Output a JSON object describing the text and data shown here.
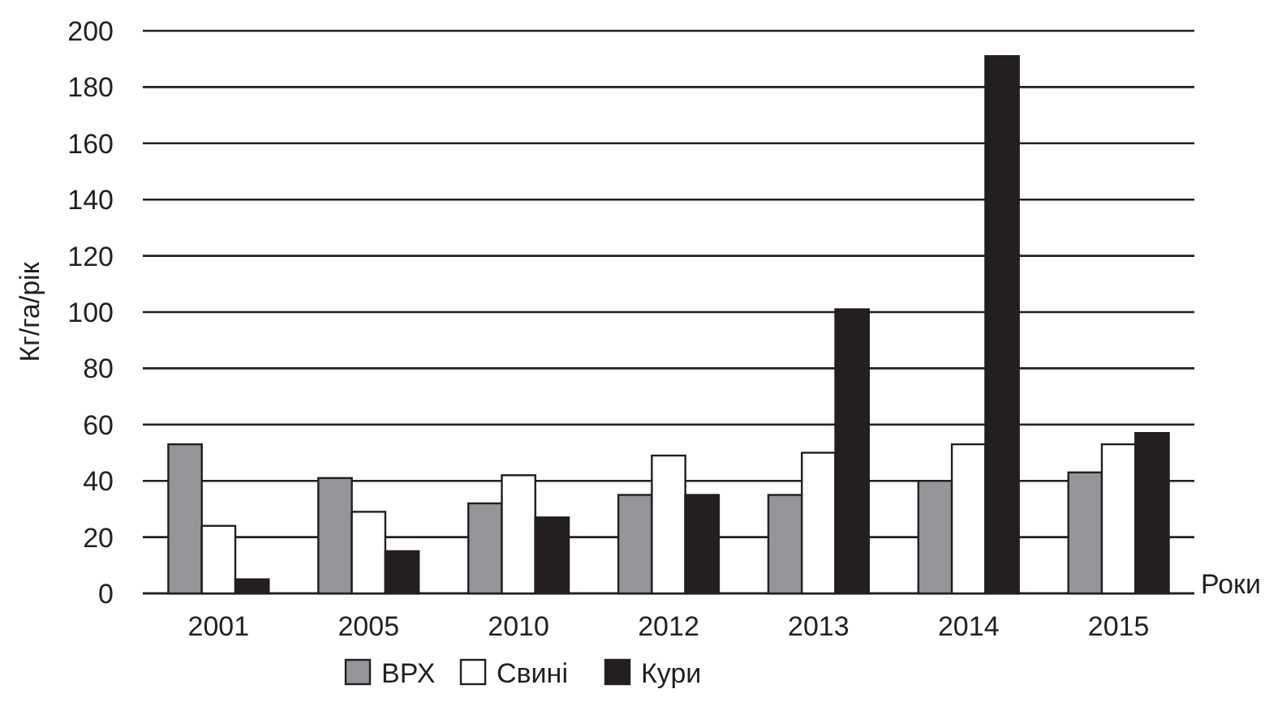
{
  "chart_data": {
    "type": "bar",
    "xlabel": "Роки",
    "ylabel": "Кг/га/рік",
    "categories": [
      "2001",
      "2005",
      "2010",
      "2012",
      "2013",
      "2014",
      "2015"
    ],
    "series": [
      {
        "name": "ВРХ",
        "color": "#939598",
        "values": [
          53,
          41,
          32,
          35,
          35,
          40,
          43
        ]
      },
      {
        "name": "Свині",
        "color": "#ffffff",
        "values": [
          24,
          29,
          42,
          49,
          50,
          53,
          53
        ]
      },
      {
        "name": "Кури",
        "color": "#231f20",
        "values": [
          5,
          15,
          27,
          35,
          101,
          191,
          57
        ]
      }
    ],
    "ylim": [
      0,
      200
    ],
    "yticks": [
      0,
      20,
      40,
      60,
      80,
      100,
      120,
      140,
      160,
      180,
      200
    ],
    "grid": "y",
    "legend": "bottom"
  }
}
